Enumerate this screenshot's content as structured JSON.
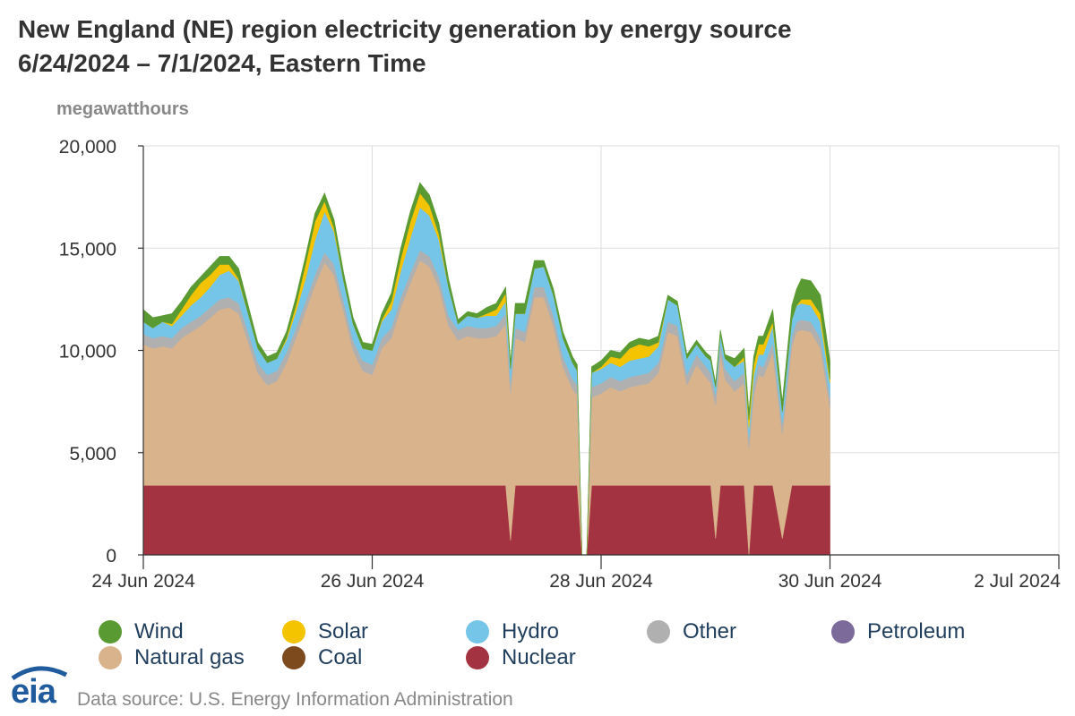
{
  "title_line1": "New England (NE) region electricity generation by energy source",
  "title_line2": "6/24/2024 – 7/1/2024, Eastern Time",
  "source": "Data source: U.S. Energy Information Administration",
  "logo_text": "eia",
  "chart_data": {
    "type": "area",
    "stacked": true,
    "ylabel": "megawatthours",
    "ylim": [
      0,
      20000
    ],
    "yticks": [
      0,
      5000,
      10000,
      15000,
      20000
    ],
    "ytick_labels": [
      "0",
      "5,000",
      "10,000",
      "15,000",
      "20,000"
    ],
    "xlim_hours": [
      0,
      192
    ],
    "xtick_hours": [
      0,
      48,
      96,
      144,
      192
    ],
    "xtick_labels": [
      "24 Jun 2024",
      "26 Jun 2024",
      "28 Jun 2024",
      "30 Jun 2024",
      "2 Jul 2024"
    ],
    "x_hours": [
      0,
      2,
      4,
      6,
      8,
      10,
      12,
      14,
      16,
      18,
      20,
      22,
      24,
      26,
      28,
      30,
      32,
      34,
      36,
      38,
      40,
      42,
      44,
      46,
      48,
      50,
      52,
      54,
      56,
      58,
      60,
      62,
      64,
      66,
      68,
      70,
      72,
      74,
      76,
      77,
      78,
      80,
      82,
      84,
      86,
      88,
      90,
      91,
      92,
      93,
      94,
      96,
      98,
      100,
      102,
      104,
      106,
      108,
      110,
      112,
      114,
      116,
      118,
      119,
      120,
      121,
      122,
      124,
      126,
      127,
      128,
      129,
      130,
      132,
      134,
      136,
      137,
      138,
      140,
      142,
      144
    ],
    "series": [
      {
        "name": "Nuclear",
        "color": "#a33340",
        "values": [
          3400,
          3400,
          3400,
          3400,
          3400,
          3400,
          3400,
          3400,
          3400,
          3400,
          3400,
          3400,
          3400,
          3400,
          3400,
          3400,
          3400,
          3400,
          3400,
          3400,
          3400,
          3400,
          3400,
          3400,
          3400,
          3400,
          3400,
          3400,
          3400,
          3400,
          3400,
          3400,
          3400,
          3400,
          3400,
          3400,
          3400,
          3400,
          3400,
          700,
          3400,
          3400,
          3400,
          3400,
          3400,
          3400,
          3400,
          3400,
          0,
          0,
          3400,
          3400,
          3400,
          3400,
          3400,
          3400,
          3400,
          3400,
          3400,
          3400,
          3400,
          3400,
          3400,
          3400,
          800,
          3400,
          3400,
          3400,
          3400,
          0,
          3400,
          3400,
          3400,
          3400,
          800,
          3400,
          3400,
          3400,
          3400,
          3400,
          3400
        ]
      },
      {
        "name": "Natural gas",
        "color": "#d9b38c",
        "values": [
          6900,
          6700,
          6800,
          6700,
          7200,
          7500,
          7800,
          8200,
          8600,
          8700,
          8400,
          7000,
          5500,
          4900,
          5100,
          6000,
          7200,
          8500,
          9800,
          10900,
          10300,
          8500,
          6600,
          5600,
          5400,
          6700,
          7200,
          8700,
          9900,
          11000,
          10700,
          9700,
          7800,
          7100,
          7300,
          7200,
          7200,
          7300,
          7900,
          7200,
          7200,
          7000,
          9200,
          9200,
          7800,
          5800,
          4700,
          4400,
          0,
          0,
          4300,
          4500,
          4800,
          4600,
          4800,
          4900,
          5000,
          5500,
          7500,
          7300,
          4900,
          5900,
          5300,
          5000,
          6500,
          6400,
          5200,
          4600,
          5000,
          5200,
          4400,
          5400,
          5300,
          6500,
          5100,
          6800,
          7500,
          7600,
          7500,
          6700,
          3800
        ]
      },
      {
        "name": "Other",
        "color": "#b0b0b0",
        "values": [
          500,
          500,
          500,
          500,
          500,
          500,
          500,
          500,
          500,
          500,
          500,
          500,
          500,
          500,
          500,
          500,
          500,
          500,
          500,
          500,
          500,
          500,
          500,
          500,
          500,
          500,
          500,
          500,
          500,
          500,
          500,
          500,
          500,
          500,
          500,
          500,
          500,
          500,
          500,
          500,
          500,
          500,
          500,
          500,
          500,
          500,
          500,
          500,
          0,
          0,
          500,
          500,
          500,
          500,
          500,
          500,
          500,
          500,
          500,
          500,
          500,
          500,
          500,
          500,
          500,
          500,
          500,
          500,
          500,
          500,
          500,
          500,
          500,
          500,
          500,
          500,
          500,
          500,
          500,
          500,
          500
        ]
      },
      {
        "name": "Petroleum",
        "color": "#7b6a9a",
        "values": [
          0,
          0,
          0,
          0,
          0,
          0,
          0,
          0,
          0,
          0,
          0,
          0,
          0,
          0,
          0,
          0,
          0,
          0,
          0,
          0,
          0,
          0,
          0,
          0,
          0,
          0,
          0,
          0,
          0,
          0,
          0,
          0,
          0,
          0,
          0,
          0,
          0,
          0,
          0,
          0,
          0,
          0,
          0,
          0,
          0,
          0,
          0,
          0,
          0,
          0,
          0,
          0,
          0,
          0,
          0,
          0,
          0,
          0,
          0,
          0,
          0,
          0,
          0,
          0,
          0,
          0,
          0,
          0,
          0,
          0,
          0,
          0,
          0,
          0,
          0,
          0,
          0,
          0,
          0,
          0,
          0
        ]
      },
      {
        "name": "Hydro",
        "color": "#74c5e8",
        "values": [
          600,
          500,
          700,
          600,
          600,
          800,
          900,
          1000,
          1200,
          1300,
          1100,
          900,
          700,
          600,
          600,
          600,
          800,
          1100,
          1700,
          2000,
          1600,
          1000,
          800,
          600,
          700,
          800,
          900,
          1300,
          1700,
          2100,
          2000,
          1800,
          1400,
          300,
          500,
          500,
          600,
          500,
          600,
          700,
          700,
          900,
          900,
          1000,
          1000,
          900,
          800,
          700,
          0,
          0,
          700,
          700,
          700,
          700,
          800,
          800,
          800,
          800,
          1100,
          1000,
          800,
          500,
          500,
          600,
          400,
          500,
          500,
          700,
          600,
          500,
          500,
          500,
          600,
          800,
          600,
          800,
          800,
          800,
          800,
          800,
          700
        ]
      },
      {
        "name": "Solar",
        "color": "#f5c400",
        "values": [
          0,
          0,
          0,
          100,
          300,
          500,
          700,
          600,
          500,
          300,
          100,
          0,
          0,
          0,
          0,
          100,
          300,
          700,
          900,
          500,
          200,
          0,
          0,
          0,
          0,
          100,
          400,
          600,
          800,
          700,
          500,
          300,
          0,
          0,
          0,
          0,
          100,
          300,
          400,
          0,
          0,
          0,
          0,
          0,
          0,
          0,
          0,
          0,
          0,
          0,
          0,
          100,
          300,
          400,
          600,
          700,
          500,
          200,
          0,
          0,
          0,
          0,
          0,
          0,
          0,
          0,
          0,
          0,
          200,
          400,
          500,
          500,
          500,
          200,
          0,
          0,
          0,
          200,
          300,
          400,
          200
        ]
      },
      {
        "name": "Wind",
        "color": "#5a9a32",
        "values": [
          600,
          500,
          300,
          500,
          400,
          400,
          300,
          400,
          400,
          400,
          500,
          400,
          300,
          300,
          300,
          300,
          400,
          400,
          400,
          400,
          400,
          400,
          300,
          300,
          300,
          300,
          400,
          500,
          500,
          500,
          500,
          500,
          400,
          200,
          200,
          200,
          300,
          300,
          300,
          300,
          500,
          500,
          400,
          300,
          300,
          300,
          300,
          300,
          0,
          0,
          300,
          300,
          300,
          300,
          300,
          300,
          300,
          300,
          200,
          200,
          200,
          200,
          200,
          200,
          200,
          200,
          200,
          400,
          400,
          400,
          400,
          400,
          400,
          600,
          500,
          700,
          800,
          1000,
          900,
          900,
          900
        ]
      },
      {
        "name": "Coal",
        "color": "#7d4a1e",
        "values": [
          0,
          0,
          0,
          0,
          0,
          0,
          0,
          0,
          0,
          0,
          0,
          0,
          0,
          0,
          0,
          0,
          0,
          0,
          0,
          0,
          0,
          0,
          0,
          0,
          0,
          0,
          0,
          0,
          0,
          0,
          0,
          0,
          0,
          0,
          0,
          0,
          0,
          0,
          0,
          0,
          0,
          0,
          0,
          0,
          0,
          0,
          0,
          0,
          0,
          0,
          0,
          0,
          0,
          0,
          0,
          0,
          0,
          0,
          0,
          0,
          0,
          0,
          0,
          0,
          0,
          0,
          0,
          0,
          0,
          0,
          0,
          0,
          0,
          0,
          0,
          0,
          0,
          0,
          0,
          0,
          0
        ]
      }
    ],
    "legend": [
      {
        "name": "Wind",
        "color": "#5a9a32"
      },
      {
        "name": "Solar",
        "color": "#f5c400"
      },
      {
        "name": "Hydro",
        "color": "#74c5e8"
      },
      {
        "name": "Other",
        "color": "#b0b0b0"
      },
      {
        "name": "Petroleum",
        "color": "#7b6a9a"
      },
      {
        "name": "Natural gas",
        "color": "#d9b38c"
      },
      {
        "name": "Coal",
        "color": "#7d4a1e"
      },
      {
        "name": "Nuclear",
        "color": "#a33340"
      }
    ]
  }
}
